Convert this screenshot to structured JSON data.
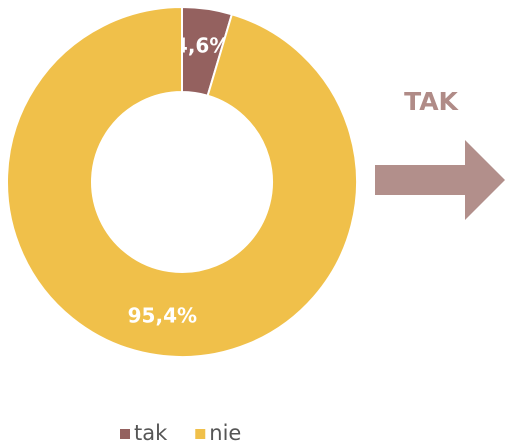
{
  "chart_data": {
    "type": "pie",
    "donut": true,
    "categories": [
      "tak",
      "nie"
    ],
    "values": [
      4.6,
      95.4
    ],
    "value_labels": [
      "4,6%",
      "95,4%"
    ],
    "colors": [
      "#94615f",
      "#f0c04a"
    ],
    "annotation": "TAK",
    "legend": "bottom"
  }
}
